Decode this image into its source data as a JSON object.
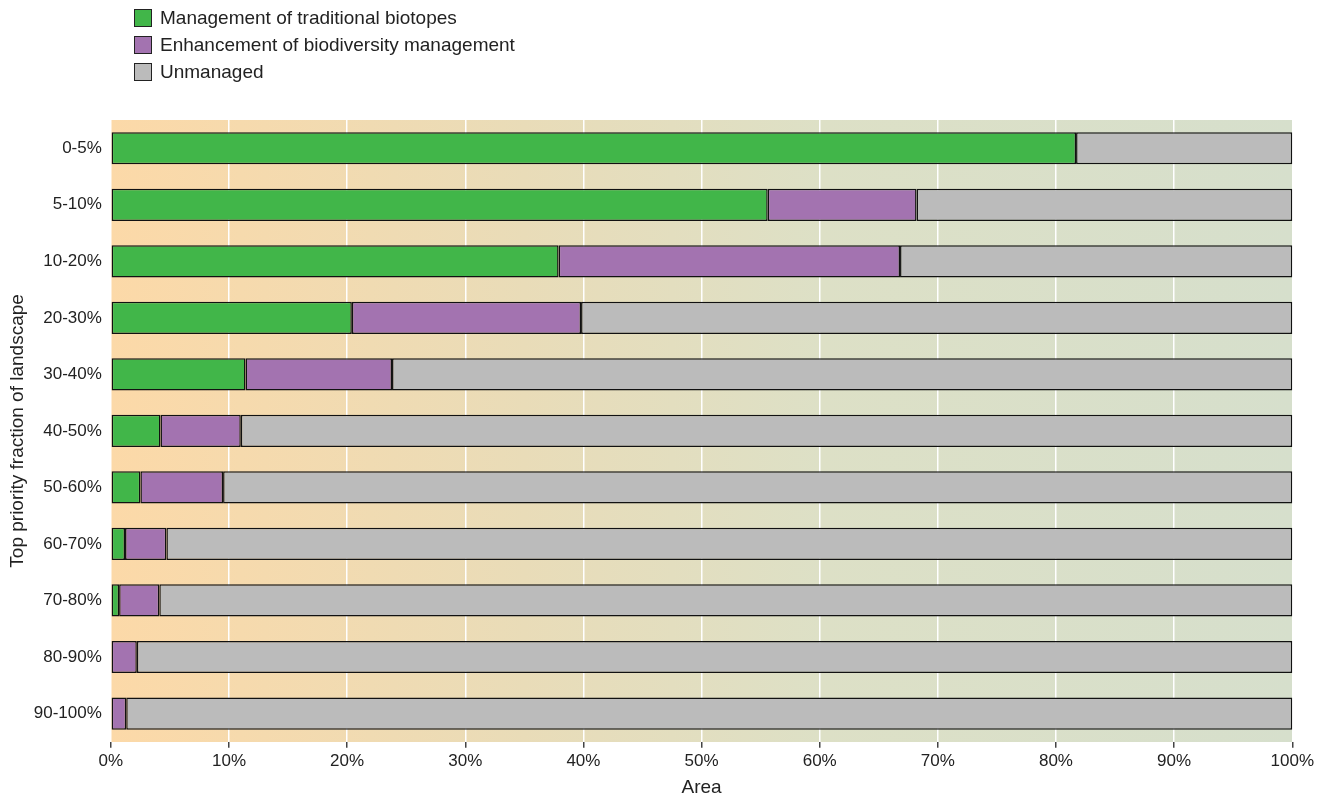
{
  "chart_data": {
    "type": "bar",
    "orientation": "horizontal",
    "stacked": true,
    "xlabel": "Area",
    "ylabel": "Top priority fraction of landscape",
    "categories": [
      "0-5%",
      "5-10%",
      "10-20%",
      "20-30%",
      "30-40%",
      "40-50%",
      "50-60%",
      "60-70%",
      "70-80%",
      "80-90%",
      "90-100%"
    ],
    "series": [
      {
        "name": "Management of traditional biotopes",
        "color": "#41b649",
        "values": [
          81.7,
          55.6,
          37.9,
          20.4,
          11.4,
          4.2,
          2.5,
          1.2,
          0.7,
          0,
          0
        ]
      },
      {
        "name": "Enhancement of biodiversity management",
        "color": "#a373b0",
        "values": [
          0,
          12.6,
          28.9,
          19.4,
          12.4,
          6.8,
          7.0,
          3.5,
          3.4,
          2.2,
          1.3
        ]
      },
      {
        "name": "Unmanaged",
        "color": "#bbbbbb",
        "values": [
          18.3,
          31.8,
          33.2,
          60.2,
          76.2,
          89.0,
          90.5,
          95.3,
          95.9,
          97.8,
          98.7
        ]
      }
    ],
    "xlim": [
      0,
      100
    ],
    "xticks": [
      {
        "value": 0,
        "label": "0%"
      },
      {
        "value": 10,
        "label": "10%"
      },
      {
        "value": 20,
        "label": "20%"
      },
      {
        "value": 30,
        "label": "30%"
      },
      {
        "value": 40,
        "label": "40%"
      },
      {
        "value": 50,
        "label": "50%"
      },
      {
        "value": 60,
        "label": "60%"
      },
      {
        "value": 70,
        "label": "70%"
      },
      {
        "value": 80,
        "label": "80%"
      },
      {
        "value": 90,
        "label": "90%"
      },
      {
        "value": 100,
        "label": "100%"
      }
    ],
    "grid": "x",
    "legend": "top left"
  }
}
